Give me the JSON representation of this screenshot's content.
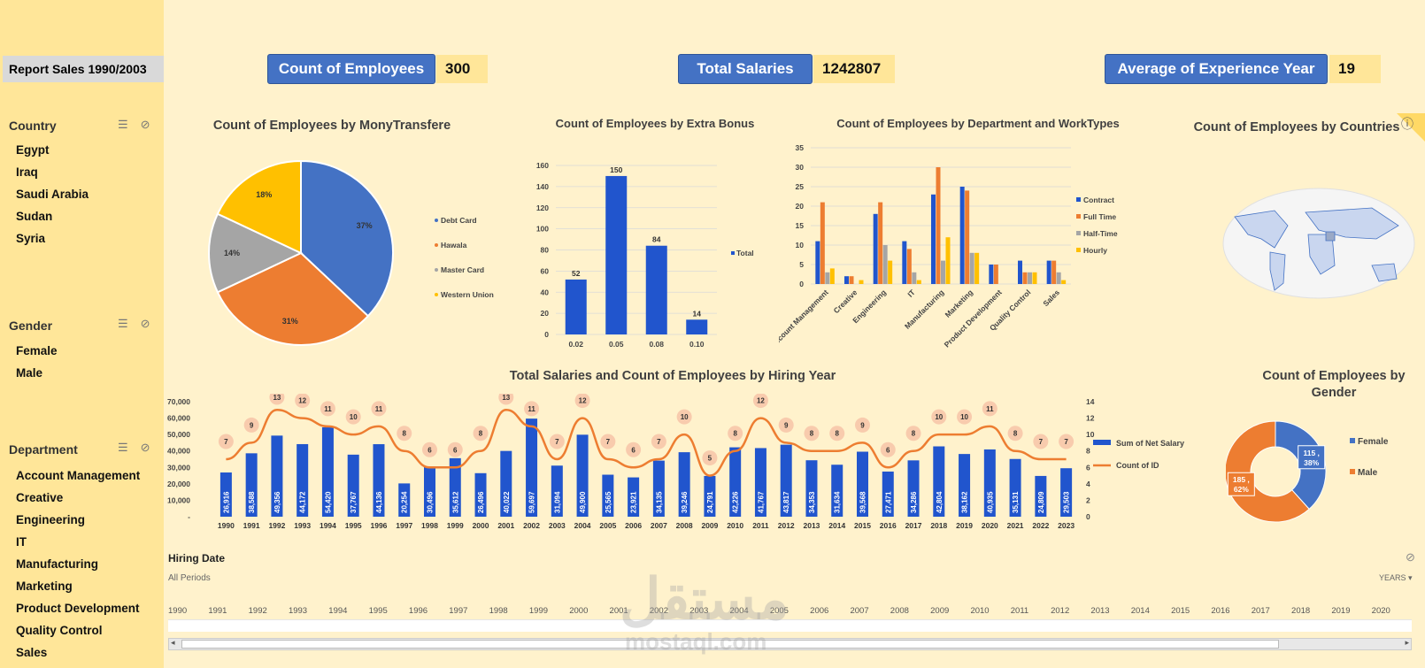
{
  "report_title": "Report Sales 1990/2003",
  "slicers": {
    "country": {
      "title": "Country",
      "items": [
        "Egypt",
        "Iraq",
        "Saudi Arabia",
        "Sudan",
        "Syria"
      ]
    },
    "gender": {
      "title": "Gender",
      "items": [
        "Female",
        "Male"
      ]
    },
    "department": {
      "title": "Department",
      "items": [
        "Account Management",
        "Creative",
        "Engineering",
        "IT",
        "Manufacturing",
        "Marketing",
        "Product Development",
        "Quality Control",
        "Sales"
      ]
    }
  },
  "kpis": [
    {
      "label": "Count of Employees",
      "value": "300"
    },
    {
      "label": "Total Salaries",
      "value": "1242807"
    },
    {
      "label": "Average of Experience Year",
      "value": "19"
    }
  ],
  "colors": {
    "blue": "#4472c4",
    "orange": "#ed7d31",
    "gray": "#a5a5a5",
    "yellow": "#ffc000",
    "bar_blue": "#2155cd"
  },
  "chart_data": [
    {
      "type": "pie",
      "title": "Count of Employees by MonyTransfere",
      "categories": [
        "Debt Card",
        "Hawala",
        "Master Card",
        "Western Union"
      ],
      "values": [
        37,
        31,
        14,
        18
      ],
      "labels": [
        "37%",
        "31%",
        "14%",
        "18%"
      ]
    },
    {
      "type": "bar",
      "title": "Count of Employees by Extra Bonus",
      "categories": [
        "0.02",
        "0.05",
        "0.08",
        "0.10"
      ],
      "series": [
        {
          "name": "Total",
          "values": [
            52,
            150,
            84,
            14
          ]
        }
      ],
      "ylim": [
        0,
        160
      ],
      "yticks": [
        "0",
        "20",
        "40",
        "60",
        "80",
        "100",
        "120",
        "140",
        "160"
      ]
    },
    {
      "type": "bar",
      "title": "Count of Employees by Department and WorkTypes",
      "categories": [
        "Account Management",
        "Creative",
        "Engineering",
        "IT",
        "Manufacturing",
        "Marketing",
        "Product Development",
        "Quality Control",
        "Sales"
      ],
      "series": [
        {
          "name": "Contract",
          "values": [
            11,
            2,
            18,
            11,
            23,
            25,
            5,
            6,
            6
          ]
        },
        {
          "name": "Full Time",
          "values": [
            21,
            2,
            21,
            9,
            30,
            24,
            5,
            3,
            6
          ]
        },
        {
          "name": "Half-Time",
          "values": [
            3,
            0,
            10,
            3,
            6,
            8,
            0,
            3,
            3
          ]
        },
        {
          "name": "Hourly",
          "values": [
            4,
            1,
            6,
            1,
            12,
            8,
            0,
            3,
            1
          ]
        }
      ],
      "ylim": [
        0,
        35
      ],
      "yticks": [
        "0",
        "5",
        "10",
        "15",
        "20",
        "25",
        "30",
        "35"
      ]
    },
    {
      "type": "other",
      "title": "Count of Employees by Countries"
    },
    {
      "type": "bar",
      "title": "Total Salaries and Count of Employees by Hiring Year",
      "categories": [
        "1990",
        "1991",
        "1992",
        "1993",
        "1994",
        "1995",
        "1996",
        "1997",
        "1998",
        "1999",
        "2000",
        "2001",
        "2002",
        "2003",
        "2004",
        "2005",
        "2006",
        "2007",
        "2008",
        "2009",
        "2010",
        "2011",
        "2012",
        "2013",
        "2014",
        "2015",
        "2016",
        "2017",
        "2018",
        "2019",
        "2020",
        "2021",
        "2022",
        "2023"
      ],
      "series": [
        {
          "name": "Sum of Net Salary",
          "values": [
            26916,
            38588,
            49356,
            44172,
            54420,
            37767,
            44136,
            20254,
            30496,
            35612,
            26496,
            40022,
            59697,
            31094,
            49900,
            25565,
            23921,
            34135,
            39246,
            24791,
            42226,
            41767,
            43817,
            34353,
            31634,
            39568,
            27471,
            34286,
            42804,
            38162,
            40935,
            35131,
            24809,
            29503
          ]
        },
        {
          "name": "Count of ID",
          "values": [
            7,
            9,
            13,
            12,
            11,
            10,
            11,
            8,
            6,
            6,
            8,
            13,
            11,
            7,
            12,
            7,
            6,
            7,
            10,
            5,
            8,
            12,
            9,
            8,
            8,
            9,
            6,
            8,
            10,
            10,
            11,
            8,
            7,
            7
          ]
        }
      ],
      "value_labels": [
        "26,916",
        "38,588",
        "49,356",
        "44,172",
        "54,420",
        "37,767",
        "44,136",
        "20,254",
        "30,496",
        "35,612",
        "26,496",
        "40,022",
        "59,697",
        "31,094",
        "49,900",
        "25,565",
        "23,921",
        "34,135",
        "39,246",
        "24,791",
        "42,226",
        "41,767",
        "43,817",
        "34,353",
        "31,634",
        "39,568",
        "27,471",
        "34,286",
        "42,804",
        "38,162",
        "40,935",
        "35,131",
        "24,809",
        "29,503"
      ],
      "ylim": [
        0,
        70000
      ],
      "yticks": [
        "-",
        "10,000",
        "20,000",
        "30,000",
        "40,000",
        "50,000",
        "60,000",
        "70,000"
      ],
      "y2lim": [
        0,
        14
      ],
      "y2ticks": [
        "0",
        "2",
        "4",
        "6",
        "8",
        "10",
        "12",
        "14"
      ]
    },
    {
      "type": "pie",
      "title": "Count of Employees by Gender",
      "categories": [
        "Female",
        "Male"
      ],
      "values": [
        115,
        185
      ],
      "labels": [
        "115 ,\n38%",
        "185 ,\n62%"
      ]
    }
  ],
  "timeline": {
    "title": "Hiring Date",
    "period": "All Periods",
    "level": "YEARS",
    "years": [
      "1990",
      "1991",
      "1992",
      "1993",
      "1994",
      "1995",
      "1996",
      "1997",
      "1998",
      "1999",
      "2000",
      "2001",
      "2002",
      "2003",
      "2004",
      "2005",
      "2006",
      "2007",
      "2008",
      "2009",
      "2010",
      "2011",
      "2012",
      "2013",
      "2014",
      "2015",
      "2016",
      "2017",
      "2018",
      "2019",
      "2020"
    ]
  },
  "watermark": {
    "arabic": "مستقل",
    "latin": "mostaql.com"
  }
}
